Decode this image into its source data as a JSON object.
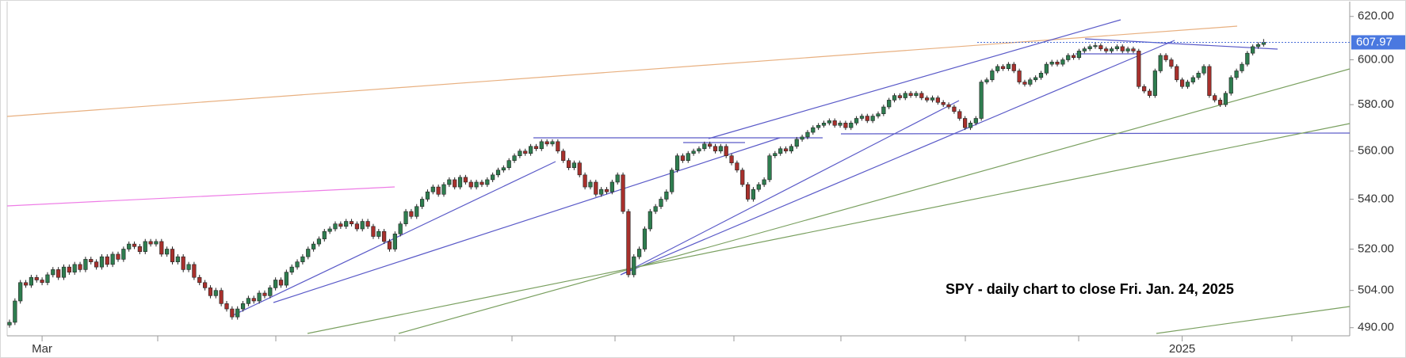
{
  "chart_data": {
    "type": "candlestick",
    "annotation": "SPY - daily chart to close Fri. Jan. 24, 2025",
    "log_scale": true,
    "up_color": "#2e7d4f",
    "down_color": "#a8302c",
    "ylim": [
      487,
      627
    ],
    "yticks": [
      {
        "value": 490,
        "label": "490.00"
      },
      {
        "value": 504,
        "label": "504.00"
      },
      {
        "value": 520,
        "label": "520.00"
      },
      {
        "value": 540,
        "label": "540.00"
      },
      {
        "value": 560,
        "label": "560.00"
      },
      {
        "value": 580,
        "label": "580.00"
      },
      {
        "value": 600,
        "label": "600.00"
      },
      {
        "value": 620,
        "label": "620.00"
      }
    ],
    "categories": [
      null,
      null,
      null,
      null,
      null,
      null,
      "Mar",
      null,
      null,
      null,
      null,
      null,
      null,
      null,
      null,
      null,
      null,
      null,
      null,
      null,
      null,
      null,
      null,
      null,
      null,
      null,
      null,
      null,
      null,
      null,
      null,
      null,
      null,
      null,
      null,
      null,
      null,
      null,
      null,
      null,
      null,
      null,
      null,
      null,
      null,
      null,
      null,
      null,
      null,
      null,
      null,
      null,
      null,
      null,
      null,
      null,
      null,
      null,
      null,
      null,
      null,
      null,
      null,
      null,
      null,
      null,
      null,
      null,
      null,
      null,
      null,
      null,
      null,
      null,
      null,
      null,
      null,
      null,
      null,
      null,
      null,
      null,
      null,
      null,
      null,
      null,
      null,
      null,
      null,
      null,
      null,
      null,
      null,
      null,
      null,
      null,
      null,
      null,
      null,
      null,
      null,
      null,
      null,
      null,
      null,
      null,
      null,
      null,
      null,
      null,
      null,
      null,
      null,
      null,
      null,
      null,
      null,
      null,
      null,
      null,
      null,
      null,
      null,
      null,
      null,
      null,
      null,
      null,
      null,
      null,
      null,
      null,
      null,
      null,
      null,
      null,
      null,
      null,
      null,
      null,
      null,
      null,
      null,
      null,
      null,
      null,
      null,
      null,
      null,
      null,
      null,
      null,
      null,
      null,
      null,
      null,
      null,
      null,
      null,
      null,
      null,
      null,
      null,
      null,
      null,
      null,
      null,
      null,
      null,
      null,
      null,
      null,
      null,
      null,
      null,
      null,
      null,
      null,
      null,
      null,
      null,
      null,
      null,
      null,
      null,
      null,
      null,
      null,
      null,
      null,
      null,
      null,
      null,
      null,
      null,
      null,
      null,
      null,
      null,
      null,
      null,
      null,
      null,
      null,
      null,
      null,
      null,
      null,
      null,
      null,
      null,
      null,
      null,
      null,
      null,
      null,
      "2025",
      null,
      null,
      null,
      null,
      null,
      null,
      null,
      null,
      null,
      null,
      null,
      null,
      null,
      null,
      null
    ],
    "ohlc": [
      [
        491,
        493,
        490,
        492
      ],
      [
        492,
        501,
        491,
        500
      ],
      [
        500,
        508,
        499,
        507
      ],
      [
        507,
        508,
        505,
        506
      ],
      [
        506,
        510,
        505,
        509
      ],
      [
        509,
        510,
        507,
        508
      ],
      [
        508,
        509,
        506,
        507
      ],
      [
        507,
        511,
        506,
        510
      ],
      [
        510,
        513,
        509,
        512
      ],
      [
        512,
        513,
        508,
        509
      ],
      [
        509,
        514,
        508,
        513
      ],
      [
        513,
        514,
        510,
        511
      ],
      [
        511,
        515,
        510,
        514
      ],
      [
        514,
        515,
        511,
        512
      ],
      [
        512,
        517,
        511,
        516
      ],
      [
        516,
        517,
        514,
        515
      ],
      [
        515,
        516,
        512,
        513
      ],
      [
        513,
        518,
        512,
        517
      ],
      [
        517,
        518,
        513,
        514
      ],
      [
        514,
        519,
        513,
        518
      ],
      [
        518,
        519,
        515,
        516
      ],
      [
        516,
        521,
        515,
        520
      ],
      [
        520,
        523,
        519,
        522
      ],
      [
        522,
        523,
        520,
        521
      ],
      [
        521,
        522,
        518,
        519
      ],
      [
        519,
        524,
        518,
        523
      ],
      [
        523,
        524,
        521,
        522
      ],
      [
        522,
        524,
        521,
        523
      ],
      [
        523,
        524,
        517,
        518
      ],
      [
        518,
        521,
        517,
        520
      ],
      [
        520,
        521,
        514,
        515
      ],
      [
        515,
        518,
        514,
        517
      ],
      [
        517,
        518,
        511,
        512
      ],
      [
        512,
        515,
        511,
        514
      ],
      [
        514,
        515,
        508,
        509
      ],
      [
        509,
        510,
        506,
        507
      ],
      [
        507,
        508,
        504,
        505
      ],
      [
        505,
        506,
        501,
        502
      ],
      [
        502,
        505,
        501,
        504
      ],
      [
        504,
        505,
        498,
        499
      ],
      [
        499,
        500,
        496,
        497
      ],
      [
        497,
        498,
        493,
        494
      ],
      [
        494,
        498,
        493,
        497
      ],
      [
        497,
        500,
        496,
        499
      ],
      [
        499,
        502,
        498,
        501
      ],
      [
        501,
        502,
        499,
        500
      ],
      [
        500,
        504,
        499,
        503
      ],
      [
        503,
        504,
        501,
        502
      ],
      [
        502,
        506,
        501,
        505
      ],
      [
        505,
        509,
        504,
        508
      ],
      [
        508,
        509,
        505,
        506
      ],
      [
        506,
        512,
        505,
        511
      ],
      [
        511,
        514,
        510,
        513
      ],
      [
        513,
        516,
        512,
        515
      ],
      [
        515,
        518,
        514,
        517
      ],
      [
        517,
        521,
        516,
        520
      ],
      [
        520,
        523,
        519,
        522
      ],
      [
        522,
        525,
        521,
        524
      ],
      [
        524,
        528,
        523,
        527
      ],
      [
        527,
        529,
        526,
        528
      ],
      [
        528,
        531,
        527,
        530
      ],
      [
        530,
        531,
        528,
        529
      ],
      [
        529,
        532,
        528,
        531
      ],
      [
        531,
        532,
        529,
        530
      ],
      [
        530,
        531,
        527,
        528
      ],
      [
        528,
        532,
        527,
        531
      ],
      [
        531,
        532,
        528,
        529
      ],
      [
        529,
        530,
        524,
        525
      ],
      [
        525,
        528,
        524,
        527
      ],
      [
        527,
        528,
        522,
        523
      ],
      [
        523,
        524,
        519,
        520
      ],
      [
        520,
        527,
        519,
        526
      ],
      [
        526,
        531,
        525,
        530
      ],
      [
        530,
        536,
        529,
        535
      ],
      [
        535,
        536,
        532,
        533
      ],
      [
        533,
        538,
        532,
        537
      ],
      [
        537,
        541,
        536,
        540
      ],
      [
        540,
        544,
        539,
        543
      ],
      [
        543,
        546,
        542,
        545
      ],
      [
        545,
        546,
        541,
        542
      ],
      [
        542,
        547,
        541,
        546
      ],
      [
        546,
        549,
        545,
        548
      ],
      [
        548,
        549,
        544,
        545
      ],
      [
        545,
        550,
        544,
        549
      ],
      [
        549,
        550,
        546,
        547
      ],
      [
        547,
        548,
        544,
        545
      ],
      [
        545,
        548,
        544,
        547
      ],
      [
        547,
        548,
        545,
        546
      ],
      [
        546,
        549,
        545,
        548
      ],
      [
        548,
        551,
        547,
        550
      ],
      [
        550,
        553,
        549,
        552
      ],
      [
        552,
        554,
        551,
        553
      ],
      [
        553,
        557,
        552,
        556
      ],
      [
        556,
        559,
        555,
        558
      ],
      [
        558,
        561,
        557,
        560
      ],
      [
        560,
        561,
        558,
        559
      ],
      [
        559,
        563,
        558,
        562
      ],
      [
        562,
        563,
        560,
        561
      ],
      [
        561,
        565,
        560,
        564
      ],
      [
        564,
        565,
        562,
        563
      ],
      [
        563,
        565,
        562,
        564
      ],
      [
        564,
        565,
        559,
        560
      ],
      [
        560,
        561,
        555,
        556
      ],
      [
        556,
        557,
        552,
        553
      ],
      [
        553,
        556,
        552,
        555
      ],
      [
        555,
        556,
        549,
        550
      ],
      [
        550,
        551,
        544,
        545
      ],
      [
        545,
        548,
        544,
        547
      ],
      [
        547,
        548,
        541,
        542
      ],
      [
        542,
        545,
        541,
        544
      ],
      [
        544,
        545,
        542,
        543
      ],
      [
        543,
        548,
        542,
        547
      ],
      [
        547,
        551,
        546,
        550
      ],
      [
        550,
        551,
        534,
        535
      ],
      [
        535,
        536,
        509,
        510
      ],
      [
        510,
        518,
        509,
        517
      ],
      [
        517,
        521,
        516,
        520
      ],
      [
        520,
        529,
        519,
        528
      ],
      [
        528,
        536,
        527,
        535
      ],
      [
        535,
        538,
        534,
        537
      ],
      [
        537,
        541,
        536,
        540
      ],
      [
        540,
        544,
        539,
        543
      ],
      [
        543,
        553,
        542,
        552
      ],
      [
        552,
        559,
        551,
        558
      ],
      [
        558,
        559,
        555,
        556
      ],
      [
        556,
        560,
        555,
        559
      ],
      [
        559,
        561,
        558,
        560
      ],
      [
        560,
        562,
        559,
        561
      ],
      [
        561,
        564,
        560,
        563
      ],
      [
        563,
        564,
        561,
        562
      ],
      [
        562,
        563,
        559,
        560
      ],
      [
        560,
        563,
        559,
        562
      ],
      [
        562,
        563,
        557,
        558
      ],
      [
        558,
        559,
        554,
        555
      ],
      [
        555,
        556,
        551,
        552
      ],
      [
        552,
        553,
        545,
        546
      ],
      [
        546,
        547,
        539,
        540
      ],
      [
        540,
        545,
        539,
        544
      ],
      [
        544,
        547,
        543,
        546
      ],
      [
        546,
        549,
        545,
        548
      ],
      [
        548,
        559,
        547,
        558
      ],
      [
        558,
        560,
        557,
        559
      ],
      [
        559,
        562,
        558,
        561
      ],
      [
        561,
        562,
        559,
        560
      ],
      [
        560,
        563,
        559,
        562
      ],
      [
        562,
        566,
        561,
        565
      ],
      [
        565,
        567,
        564,
        566
      ],
      [
        566,
        569,
        565,
        568
      ],
      [
        568,
        571,
        567,
        570
      ],
      [
        570,
        572,
        569,
        571
      ],
      [
        571,
        573,
        570,
        572
      ],
      [
        572,
        574,
        571,
        573
      ],
      [
        573,
        574,
        570,
        571
      ],
      [
        571,
        573,
        570,
        572
      ],
      [
        572,
        573,
        569,
        570
      ],
      [
        570,
        573,
        569,
        572
      ],
      [
        572,
        575,
        571,
        574
      ],
      [
        574,
        576,
        573,
        575
      ],
      [
        575,
        576,
        572,
        573
      ],
      [
        573,
        576,
        572,
        575
      ],
      [
        575,
        577,
        574,
        576
      ],
      [
        576,
        580,
        575,
        579
      ],
      [
        579,
        583,
        578,
        582
      ],
      [
        582,
        585,
        581,
        584
      ],
      [
        584,
        585,
        582,
        583
      ],
      [
        583,
        586,
        582,
        585
      ],
      [
        585,
        586,
        583,
        584
      ],
      [
        584,
        586,
        583,
        585
      ],
      [
        585,
        586,
        582,
        583
      ],
      [
        583,
        584,
        581,
        582
      ],
      [
        582,
        584,
        581,
        583
      ],
      [
        583,
        584,
        580,
        581
      ],
      [
        581,
        582,
        579,
        580
      ],
      [
        580,
        581,
        578,
        579
      ],
      [
        579,
        580,
        576,
        577
      ],
      [
        577,
        578,
        573,
        574
      ],
      [
        574,
        575,
        569,
        570
      ],
      [
        570,
        573,
        569,
        572
      ],
      [
        572,
        575,
        571,
        574
      ],
      [
        574,
        591,
        573,
        590
      ],
      [
        590,
        592,
        589,
        591
      ],
      [
        591,
        596,
        590,
        595
      ],
      [
        595,
        598,
        594,
        597
      ],
      [
        597,
        598,
        595,
        596
      ],
      [
        596,
        599,
        595,
        598
      ],
      [
        598,
        599,
        594,
        595
      ],
      [
        595,
        596,
        589,
        590
      ],
      [
        590,
        591,
        588,
        589
      ],
      [
        589,
        592,
        588,
        591
      ],
      [
        591,
        593,
        590,
        592
      ],
      [
        592,
        595,
        591,
        594
      ],
      [
        594,
        599,
        593,
        598
      ],
      [
        598,
        600,
        597,
        599
      ],
      [
        599,
        600,
        597,
        598
      ],
      [
        598,
        601,
        597,
        600
      ],
      [
        600,
        603,
        599,
        602
      ],
      [
        602,
        603,
        600,
        601
      ],
      [
        601,
        605,
        600,
        604
      ],
      [
        604,
        606,
        603,
        605
      ],
      [
        605,
        607,
        604,
        606
      ],
      [
        606,
        608,
        605,
        606.5
      ],
      [
        606.5,
        607.5,
        604,
        605
      ],
      [
        605,
        606,
        603,
        604
      ],
      [
        604,
        606,
        603,
        605
      ],
      [
        605,
        607,
        604,
        606
      ],
      [
        606,
        607,
        603,
        604
      ],
      [
        604,
        606,
        603,
        605
      ],
      [
        605,
        606,
        603,
        604
      ],
      [
        604,
        605,
        587,
        588
      ],
      [
        588,
        589,
        585,
        586
      ],
      [
        586,
        587,
        583,
        584
      ],
      [
        584,
        596,
        583,
        595
      ],
      [
        595,
        603,
        594,
        602
      ],
      [
        602,
        603,
        599,
        600
      ],
      [
        600,
        601,
        596,
        597
      ],
      [
        597,
        598,
        590,
        591
      ],
      [
        591,
        592,
        587,
        588
      ],
      [
        588,
        591,
        587,
        590
      ],
      [
        590,
        593,
        589,
        592
      ],
      [
        592,
        595,
        591,
        594
      ],
      [
        594,
        598,
        593,
        597
      ],
      [
        597,
        598,
        583,
        584
      ],
      [
        584,
        585,
        581,
        582
      ],
      [
        582,
        583,
        579,
        580
      ],
      [
        580,
        586,
        579,
        585
      ],
      [
        585,
        593,
        584,
        592
      ],
      [
        592,
        596,
        591,
        595
      ],
      [
        595,
        599,
        594,
        598
      ],
      [
        598,
        604,
        597,
        603
      ],
      [
        603,
        607,
        602,
        606
      ],
      [
        606,
        608,
        605,
        607
      ],
      [
        607,
        609.5,
        606,
        607.97
      ]
    ]
  }
}
